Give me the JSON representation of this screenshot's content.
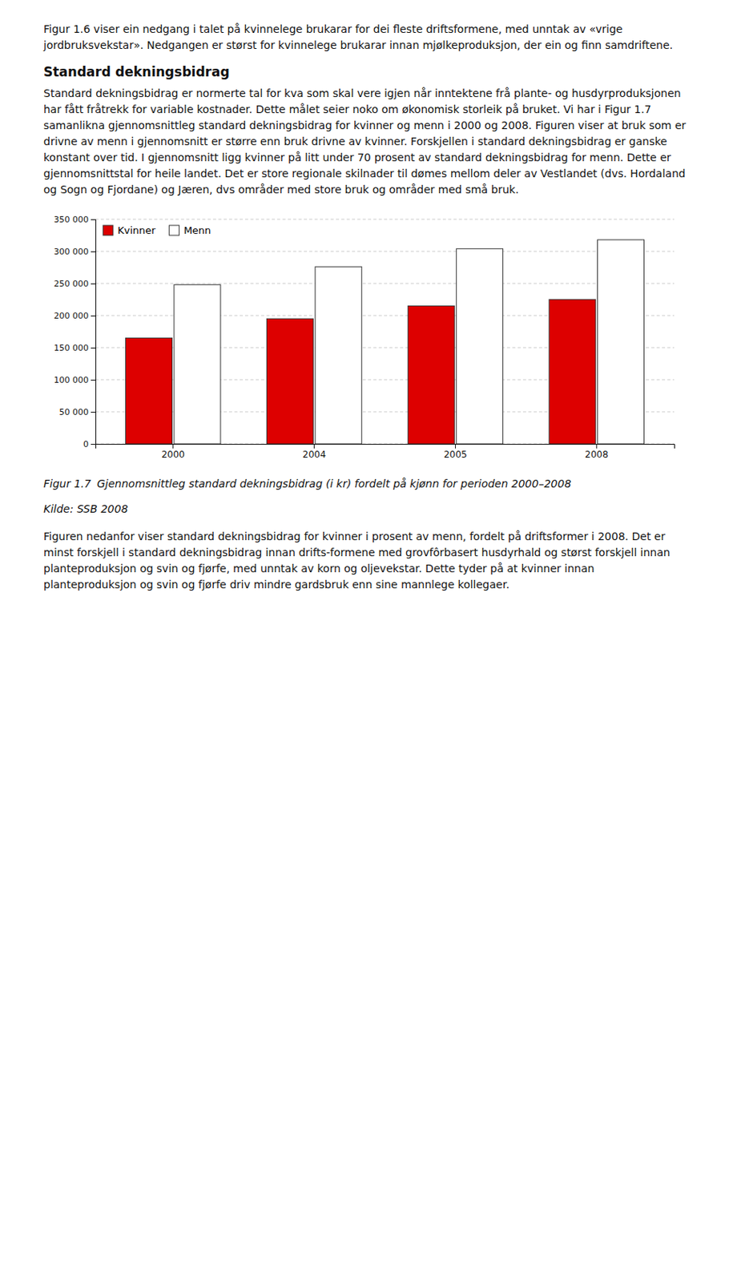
{
  "intro_text": "Figur 1.6 viser ein nedgang i talet på kvinnelege brukarar for dei fleste driftsformene, med unntak av «vrige jordbruksvekstar». Nedgangen er størst for kvinnelege brukarar innan mjølkeproduksjon, der ein og finn samdriftene.",
  "heading": "Standard dekningsbidrag",
  "body_text": "Standard dekningsbidrag er normerte tal for kva som skal vere igjen når inntektene frå plante- og husdyrproduksjonen har fått fråtrekk for variable kostnader. Dette målet seier noko om økonomisk storleik på bruket. Vi har i Figur 1.7 samanlikna gjennomsnittleg standard dekningsbidrag for kvinner og menn i 2000 og 2008. Figuren viser at bruk som er drivne av menn i gjennomsnitt er større enn bruk drivne av kvinner. Forskjellen i standard dekningsbidrag er ganske konstant over tid. I gjennomsnitt ligg kvinner på litt under 70 prosent av standard dekningsbidrag for menn. Dette er gjennomsnittstal for heile landet. Det er store regionale skilnader til dømes mellom deler av Vestlandet (dvs. Hordaland og Sogn og Fjordane) og Jæren, dvs områder med store bruk og områder med små bruk.",
  "chart_data": {
    "type": "bar",
    "title": "Gjennomsnittleg standard dekningsbidrag (i kr) fordelt på kjønn for perioden 2000–2008",
    "categories": [
      "2000",
      "2004",
      "2005",
      "2008"
    ],
    "series": [
      {
        "name": "Kvinner",
        "color": "#dd0000",
        "values": [
          165000,
          195000,
          215000,
          225000
        ]
      },
      {
        "name": "Menn",
        "color": "#ffffff",
        "values": [
          248000,
          276000,
          304000,
          318000
        ]
      }
    ],
    "ylim": [
      0,
      350000
    ],
    "yticks": [
      0,
      {
        "value": 50000,
        "label": "50 000"
      },
      {
        "value": 100000,
        "label": "100 000"
      },
      {
        "value": 150000,
        "label": "150 000"
      },
      {
        "value": 200000,
        "label": "200 000"
      },
      {
        "value": 250000,
        "label": "250 000"
      },
      {
        "value": 300000,
        "label": "300 000"
      },
      {
        "value": 350000,
        "label": "350 000"
      }
    ],
    "grid": true,
    "legend": "upper left"
  },
  "figure_label": "Figur 1.7",
  "source_text": "Kilde: SSB 2008",
  "bottom_text": "Figuren nedanfor viser standard dekningsbidrag for kvinner i prosent av menn, fordelt på driftsformer i 2008. Det er minst forskjell i standard dekningsbidrag innan drifts-formene med grovfôrbasert husdyrhald og størst forskjell innan planteproduksjon og svin og fjørfe, med unntak av korn og oljevekstar. Dette tyder på at kvinner innan planteproduksjon og svin og fjørfe driv mindre gardsbruk enn sine mannlege kollegaer."
}
